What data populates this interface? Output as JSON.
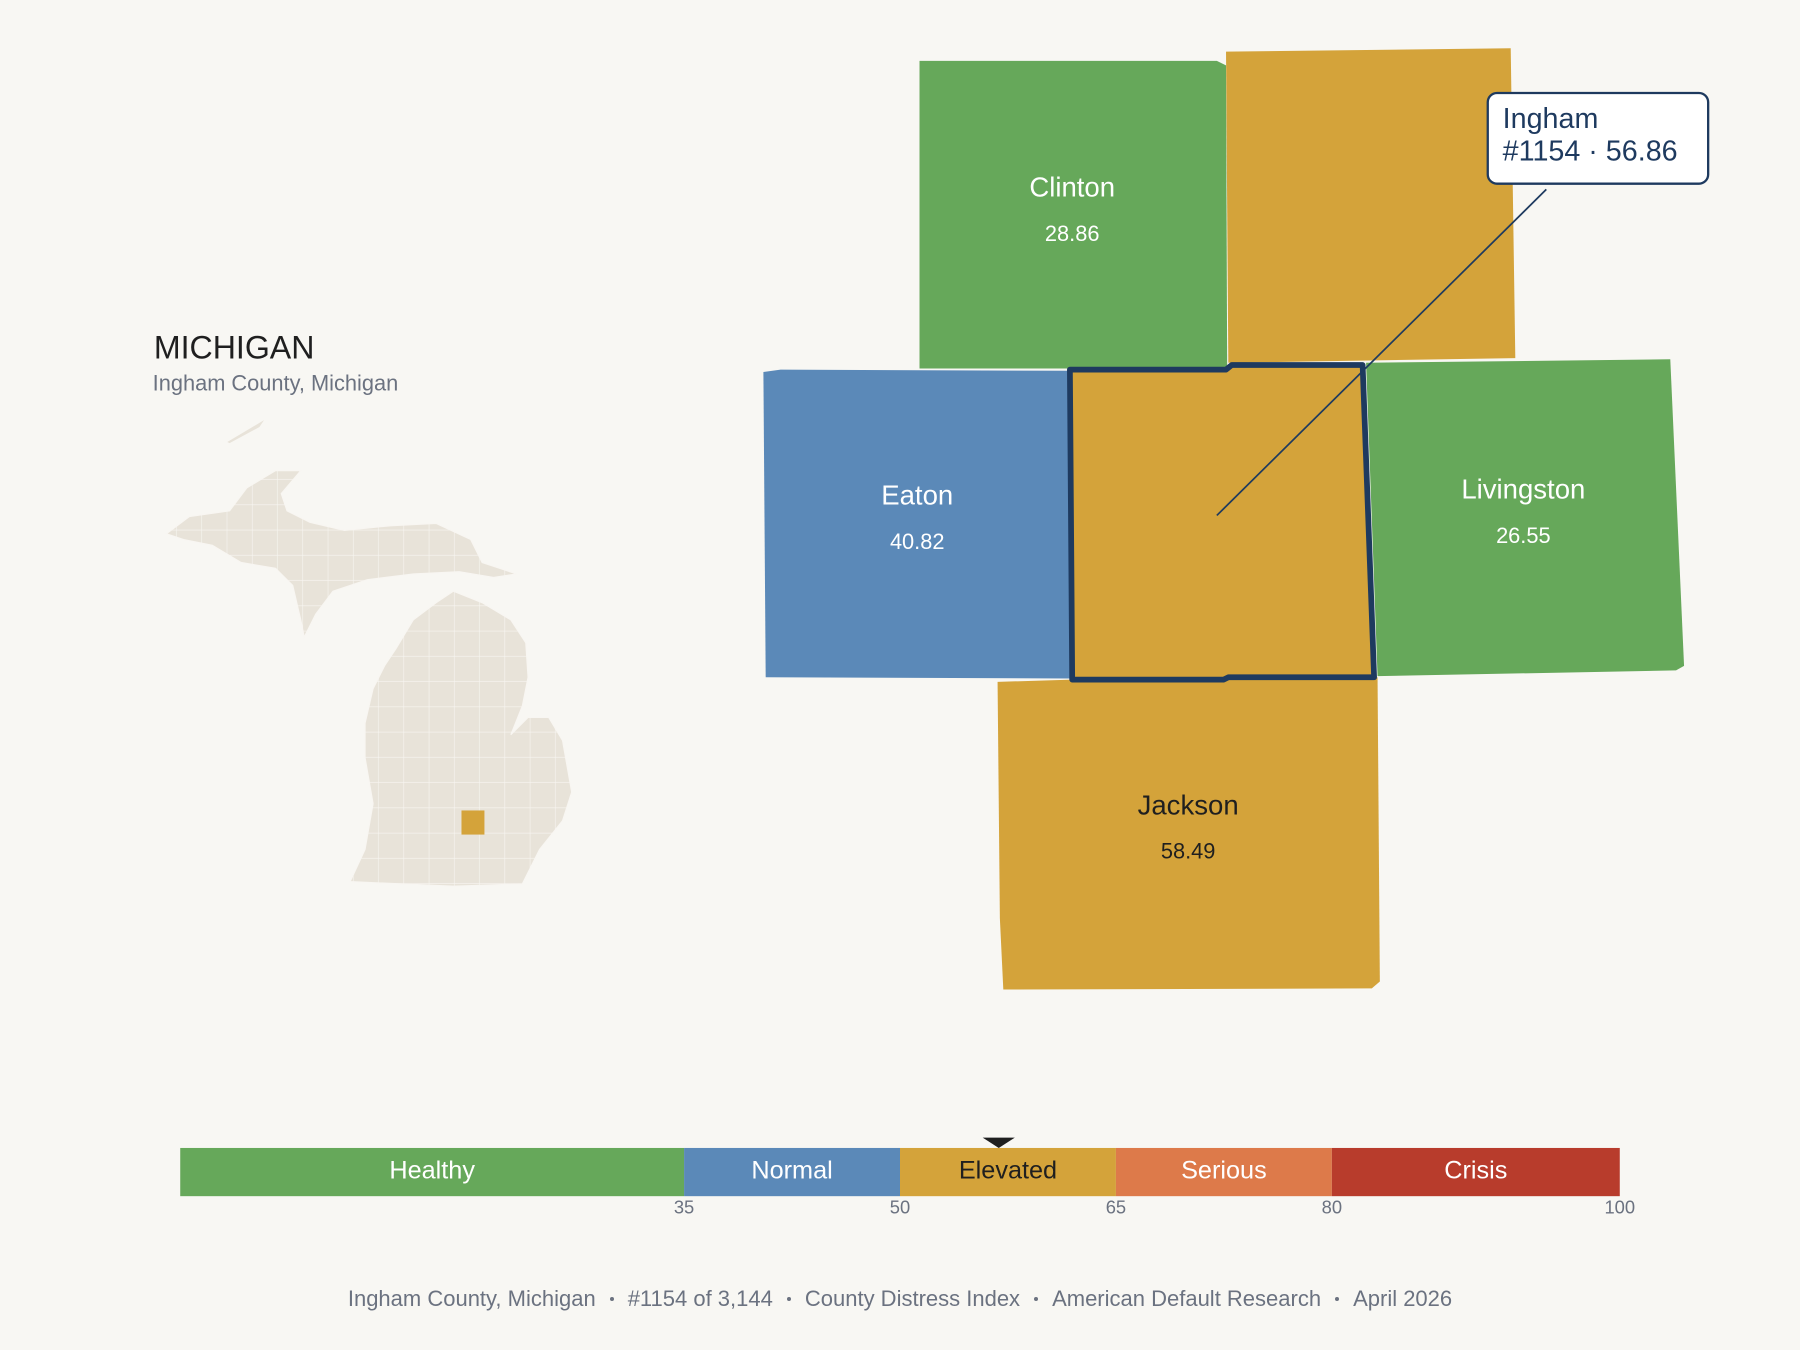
{
  "header": {
    "title": "MICHIGAN",
    "subtitle": "Ingham County, Michigan"
  },
  "counties": [
    {
      "name": "Clinton",
      "value": 28.86
    },
    {
      "name": "Eaton",
      "value": 40.82
    },
    {
      "name": "Ingham",
      "value": 56.86,
      "selected": true
    },
    {
      "name": "Livingston",
      "value": 26.55
    },
    {
      "name": "Jackson",
      "value": 58.49
    }
  ],
  "callout": {
    "detail": "#1154 · 56.86"
  },
  "scale": {
    "range": [
      0,
      100
    ],
    "bands": [
      {
        "label": "Healthy",
        "to": 35,
        "color": "#66a85a",
        "text_color": "#ffffff"
      },
      {
        "label": "Normal",
        "to": 50,
        "color": "#5b89b8",
        "text_color": "#ffffff"
      },
      {
        "label": "Elevated",
        "to": 65,
        "color": "#d4a33a",
        "text_color": "#1f1f1f"
      },
      {
        "label": "Serious",
        "to": 80,
        "color": "#dd7a4a",
        "text_color": "#ffffff"
      },
      {
        "label": "Crisis",
        "to": 100,
        "color": "#b83c2c",
        "text_color": "#ffffff"
      }
    ],
    "ticks": [
      35,
      50,
      65,
      80,
      100
    ]
  },
  "footer": [
    "Ingham County, Michigan",
    "#1154 of 3,144",
    "County Distress Index",
    "American Default Research",
    "April 2026"
  ]
}
